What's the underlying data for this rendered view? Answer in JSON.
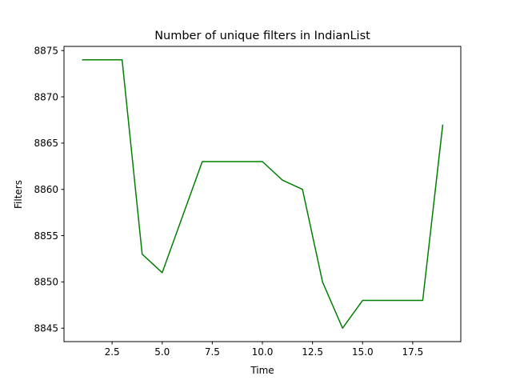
{
  "chart_data": {
    "type": "line",
    "title": "Number of unique filters in IndianList",
    "xlabel": "Time",
    "ylabel": "Filters",
    "xlim": [
      0.1,
      19.9
    ],
    "ylim": [
      8843.55,
      8875.45
    ],
    "xticks": [
      2.5,
      5.0,
      7.5,
      10.0,
      12.5,
      15.0,
      17.5
    ],
    "xtick_labels": [
      "2.5",
      "5.0",
      "7.5",
      "10.0",
      "12.5",
      "15.0",
      "17.5"
    ],
    "yticks": [
      8845,
      8850,
      8855,
      8860,
      8865,
      8870,
      8875
    ],
    "ytick_labels": [
      "8845",
      "8850",
      "8855",
      "8860",
      "8865",
      "8870",
      "8875"
    ],
    "grid": false,
    "series": [
      {
        "color": "#008000",
        "x": [
          1,
          2,
          3,
          4,
          5,
          6,
          7,
          8,
          9,
          10,
          11,
          12,
          13,
          14,
          15,
          16,
          17,
          18,
          19
        ],
        "y": [
          8874,
          8874,
          8874,
          8853,
          8851,
          8857,
          8863,
          8863,
          8863,
          8863,
          8861,
          8860,
          8850,
          8845,
          8848,
          8848,
          8848,
          8848,
          8867
        ]
      }
    ]
  }
}
